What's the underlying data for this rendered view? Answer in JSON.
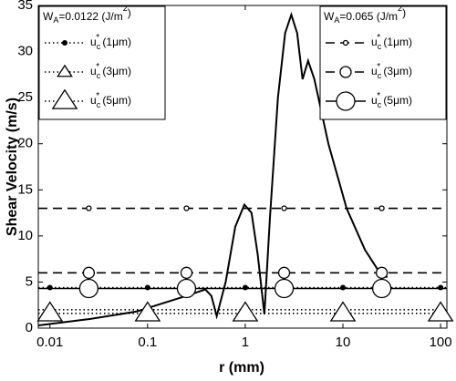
{
  "chart_data": {
    "type": "line",
    "xlabel": "r (mm)",
    "ylabel": "Shear Velocity (m/s)",
    "xscale": "log",
    "xlim": [
      0.0076,
      116
    ],
    "ylim": [
      0,
      35
    ],
    "xticks": [
      0.01,
      0.1,
      1,
      10,
      100
    ],
    "yticks": [
      0,
      5,
      10,
      15,
      20,
      25,
      30,
      35
    ],
    "series": [
      {
        "color": "#000000",
        "x": [
          0.0076,
          0.026,
          0.077,
          0.25,
          0.39,
          0.45,
          0.51,
          0.63,
          0.79,
          0.98,
          1.16,
          1.34,
          1.57,
          1.79,
          2.16,
          2.56,
          2.96,
          3.4,
          3.86,
          4.4,
          5.1,
          7.1,
          10.9,
          16.8,
          23.2,
          28.5
        ],
        "values": [
          0.3,
          1.0,
          1.8,
          3.5,
          4.2,
          3.5,
          1.3,
          5,
          11,
          13.4,
          12.5,
          8,
          1.5,
          12,
          25,
          32,
          34,
          32,
          27,
          29,
          27,
          20,
          13,
          8.5,
          6.2,
          5.5
        ]
      }
    ],
    "reference_groups": [
      {
        "legend": "upper left",
        "title": [
          "W",
          "A",
          "=0.0122 (J/m",
          "2",
          ")"
        ],
        "series": [
          {
            "name": [
              "u",
              "c",
              "*",
              " (1μm)"
            ],
            "value": 4.4,
            "color": "#000000",
            "linestyle": "dotted",
            "marker": "dot",
            "marker_size": 3,
            "marker_x": [
              0.01,
              0.1,
              1,
              10,
              100
            ]
          },
          {
            "name": [
              "u",
              "c",
              "*",
              " (3μm)"
            ],
            "value": 2.0,
            "color": "#000000",
            "linestyle": "dotted",
            "marker": "triangle",
            "marker_size": 7,
            "marker_x": [
              0.01,
              0.1,
              1,
              10,
              100
            ]
          },
          {
            "name": [
              "u",
              "c",
              "*",
              " (5μm)"
            ],
            "value": 1.6,
            "color": "#000000",
            "linestyle": "dotted",
            "marker": "triangle",
            "marker_size": 12,
            "marker_x": [
              0.01,
              0.1,
              1,
              10,
              100
            ]
          }
        ]
      },
      {
        "legend": "upper right",
        "title": [
          "W",
          "A",
          "=0.065 (J/m",
          "2",
          ")"
        ],
        "series": [
          {
            "name": [
              "u",
              "c",
              "*",
              " (1μm)"
            ],
            "value": 13,
            "color": "#000000",
            "linestyle": "dashed",
            "marker": "circle",
            "marker_size": 2.5,
            "marker_x": [
              0.025,
              0.25,
              2.5,
              25
            ]
          },
          {
            "name": [
              "u",
              "c",
              "*",
              " (3μm)"
            ],
            "value": 6,
            "color": "#000000",
            "linestyle": "dashed",
            "marker": "circle",
            "marker_size": 6,
            "marker_x": [
              0.025,
              0.25,
              2.5,
              25
            ]
          },
          {
            "name": [
              "u",
              "c",
              "*",
              " (5μm)"
            ],
            "value": 4.3,
            "color": "#000000",
            "linestyle": "solid",
            "marker": "circle",
            "marker_size": 10,
            "marker_x": [
              0.025,
              0.25,
              2.5,
              25
            ]
          }
        ]
      }
    ]
  }
}
